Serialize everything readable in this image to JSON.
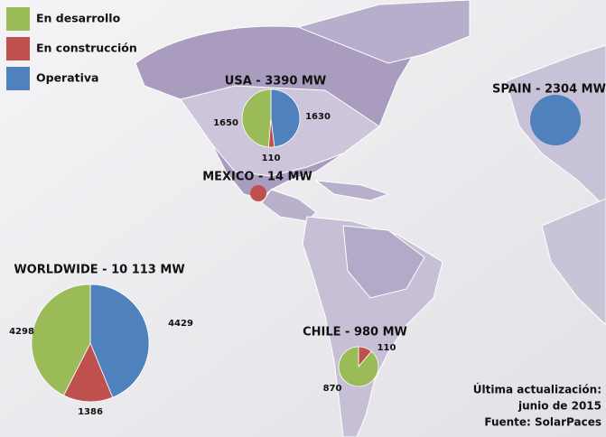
{
  "legend": [
    {
      "name": "En desarrollo",
      "color": "#9bbb59"
    },
    {
      "name": "En construcción",
      "color": "#c0504d"
    },
    {
      "name": "Operativa",
      "color": "#4f81bd"
    }
  ],
  "chart_data": [
    {
      "type": "pie",
      "title": "USA - 3390 MW",
      "values": [
        1650,
        110,
        1630
      ],
      "show_labels": true
    },
    {
      "type": "pie",
      "title": "SPAIN - 2304 MW",
      "values": [
        0,
        0,
        2304
      ],
      "show_labels": false
    },
    {
      "type": "pie",
      "title": "MEXICO - 14 MW",
      "values": [
        0,
        14,
        0
      ],
      "show_labels": false
    },
    {
      "type": "pie",
      "title": "WORLDWIDE - 10 113 MW",
      "values": [
        4298,
        1386,
        4429
      ],
      "show_labels": true
    },
    {
      "type": "pie",
      "title": "CHILE - 980 MW",
      "values": [
        870,
        110,
        0
      ],
      "show_labels": true
    }
  ],
  "note": [
    "Última actualización:",
    "junio de 2015",
    "Fuente: SolarPaces"
  ]
}
